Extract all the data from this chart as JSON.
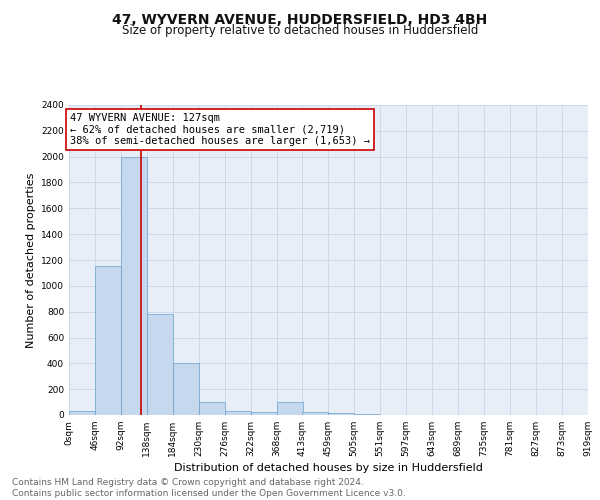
{
  "title": "47, WYVERN AVENUE, HUDDERSFIELD, HD3 4BH",
  "subtitle": "Size of property relative to detached houses in Huddersfield",
  "xlabel": "Distribution of detached houses by size in Huddersfield",
  "ylabel": "Number of detached properties",
  "bin_edges": [
    0,
    46,
    92,
    138,
    184,
    230,
    276,
    322,
    368,
    413,
    459,
    505,
    551,
    597,
    643,
    689,
    735,
    781,
    827,
    873,
    919
  ],
  "bar_heights": [
    30,
    1150,
    2000,
    780,
    400,
    100,
    30,
    25,
    100,
    25,
    15,
    5,
    3,
    2,
    1,
    1,
    0,
    0,
    0,
    0
  ],
  "bar_color": "#c5d8ee",
  "bar_edge_color": "#6ca0cc",
  "property_size": 127,
  "property_label": "47 WYVERN AVENUE: 127sqm",
  "annotation_line1": "← 62% of detached houses are smaller (2,719)",
  "annotation_line2": "38% of semi-detached houses are larger (1,653) →",
  "vline_color": "#cc0000",
  "annotation_box_color": "#cc0000",
  "ylim": [
    0,
    2400
  ],
  "yticks": [
    0,
    200,
    400,
    600,
    800,
    1000,
    1200,
    1400,
    1600,
    1800,
    2000,
    2200,
    2400
  ],
  "grid_color": "#c8d4e8",
  "bg_color": "#e8eef8",
  "footer_line1": "Contains HM Land Registry data © Crown copyright and database right 2024.",
  "footer_line2": "Contains public sector information licensed under the Open Government Licence v3.0.",
  "title_fontsize": 10,
  "subtitle_fontsize": 8.5,
  "xlabel_fontsize": 8,
  "ylabel_fontsize": 8,
  "footer_fontsize": 6.5,
  "tick_label_fontsize": 6.5,
  "annot_fontsize": 7.5
}
